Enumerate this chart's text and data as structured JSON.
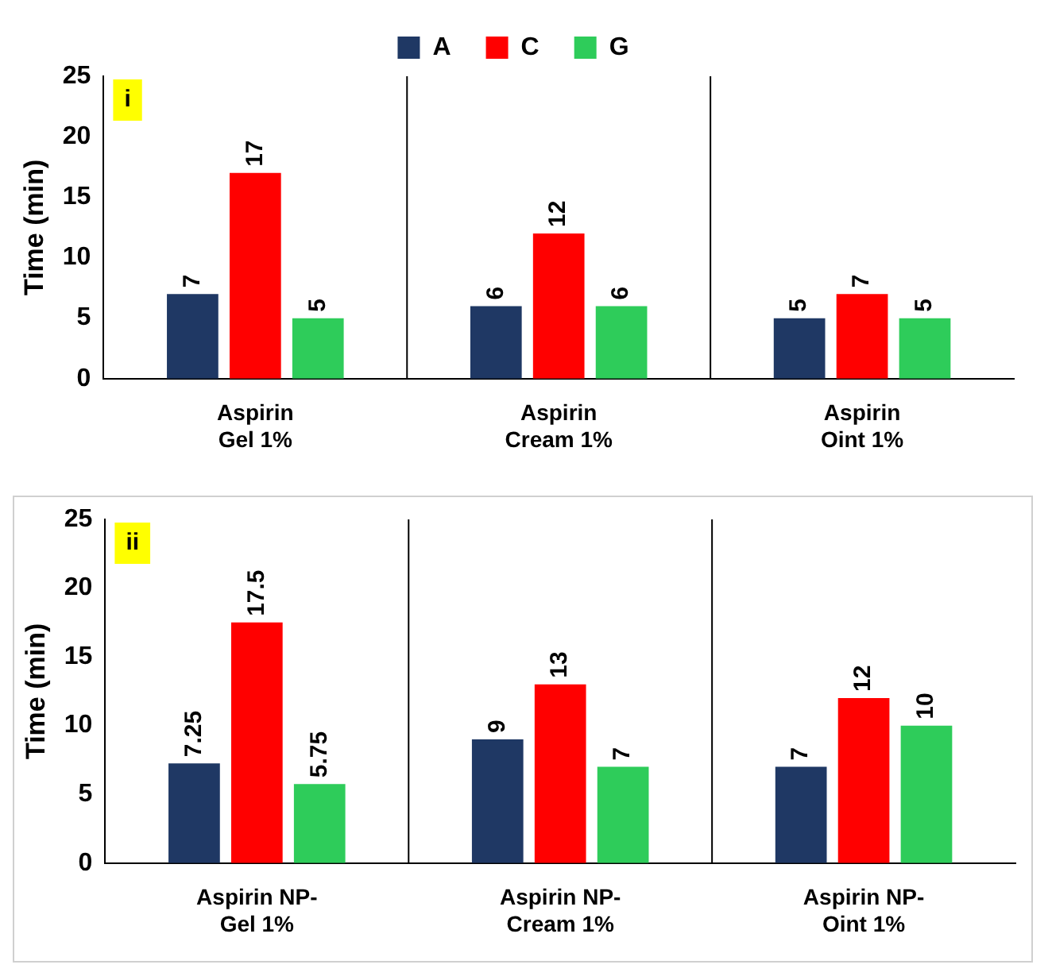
{
  "chart_data": [
    {
      "type": "bar",
      "ylabel": "Time (min)",
      "categories": [
        "Aspirin\nGel 1%",
        "Aspirin\nCream 1%",
        "Aspirin\nOint 1%"
      ],
      "series": [
        {
          "name": "A",
          "color": "#1f3864",
          "values": [
            7,
            6,
            5
          ]
        },
        {
          "name": "C",
          "color": "#ff0000",
          "values": [
            17,
            12,
            7
          ]
        },
        {
          "name": "G",
          "color": "#2ecc5a",
          "values": [
            5,
            6,
            5
          ]
        }
      ],
      "ylim": [
        0,
        25
      ],
      "yticks": [
        0,
        5,
        10,
        15,
        20,
        25
      ],
      "grid": false,
      "legend": "top",
      "data_labels": true,
      "annotations": [
        "i"
      ]
    },
    {
      "type": "bar",
      "ylabel": "Time (min)",
      "categories": [
        "Aspirin NP-\nGel 1%",
        "Aspirin NP-\nCream 1%",
        "Aspirin NP-\nOint 1%"
      ],
      "series": [
        {
          "color": "#1f3864",
          "values": [
            7.25,
            9,
            7
          ]
        },
        {
          "color": "#ff0000",
          "values": [
            17.5,
            13,
            12
          ]
        },
        {
          "color": "#2ecc5a",
          "values": [
            5.75,
            7,
            10
          ]
        }
      ],
      "ylim": [
        0,
        25
      ],
      "yticks": [
        0,
        5,
        10,
        15,
        20,
        25
      ],
      "grid": false,
      "legend": false,
      "data_labels": true,
      "annotations": [
        "ii"
      ]
    }
  ]
}
